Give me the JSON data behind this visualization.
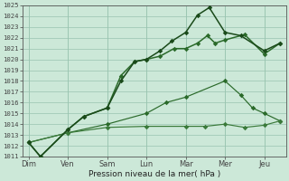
{
  "xlabel": "Pression niveau de la mer( hPa )",
  "x_labels": [
    "Dim",
    "Ven",
    "Sam",
    "Lun",
    "Mar",
    "Mer",
    "Jeu"
  ],
  "ylim": [
    1011,
    1025
  ],
  "yticks": [
    1011,
    1012,
    1013,
    1014,
    1015,
    1016,
    1017,
    1018,
    1019,
    1020,
    1021,
    1022,
    1023,
    1024,
    1025
  ],
  "background_color": "#cce8d8",
  "grid_color": "#99c4b0",
  "line_color_dark": "#1a4a1a",
  "line_color_mid": "#2a6a2a",
  "line_color_light": "#3a7a3a",
  "l1_x": [
    0,
    0.3,
    1.0,
    1.4,
    2.0,
    2.35,
    2.7,
    3.0,
    3.35,
    3.7,
    4.0,
    4.3,
    4.55,
    4.75,
    5.0,
    5.5,
    6.0,
    6.4
  ],
  "l1_y": [
    1012.3,
    1011.0,
    1013.5,
    1014.7,
    1015.5,
    1018.5,
    1019.8,
    1020.0,
    1020.3,
    1021.0,
    1021.0,
    1021.5,
    1022.2,
    1021.5,
    1021.8,
    1022.3,
    1020.5,
    1021.5
  ],
  "l2_x": [
    0,
    0.3,
    1.0,
    1.4,
    2.0,
    2.35,
    2.7,
    3.0,
    3.35,
    3.65,
    4.0,
    4.3,
    4.6,
    5.0,
    5.4,
    6.0,
    6.4
  ],
  "l2_y": [
    1012.3,
    1011.0,
    1013.5,
    1014.7,
    1015.5,
    1018.0,
    1019.8,
    1020.0,
    1020.8,
    1021.7,
    1022.5,
    1024.1,
    1024.8,
    1022.5,
    1022.2,
    1020.8,
    1021.5
  ],
  "l3_x": [
    0,
    1.0,
    2.0,
    3.0,
    4.0,
    4.5,
    5.0,
    5.5,
    6.0,
    6.4
  ],
  "l3_y": [
    1012.3,
    1013.2,
    1013.7,
    1013.8,
    1013.8,
    1013.8,
    1014.0,
    1013.7,
    1013.9,
    1014.3
  ],
  "l4_x": [
    0,
    1.0,
    2.0,
    3.0,
    3.5,
    4.0,
    5.0,
    5.4,
    5.7,
    6.0,
    6.4
  ],
  "l4_y": [
    1012.3,
    1013.2,
    1014.0,
    1015.0,
    1016.0,
    1016.5,
    1018.0,
    1016.7,
    1015.5,
    1015.0,
    1014.3
  ]
}
